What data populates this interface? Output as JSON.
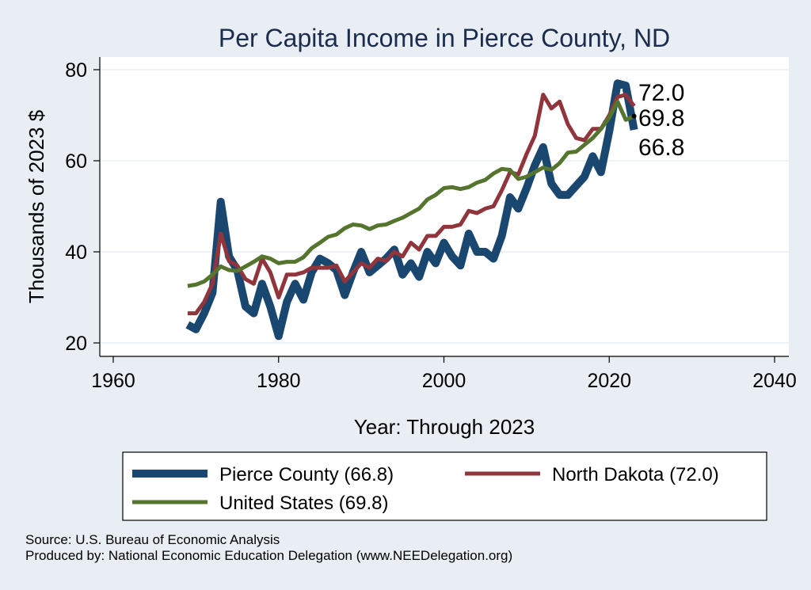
{
  "chart_data": {
    "type": "line",
    "title": "Per Capita Income in Pierce County, ND",
    "xlabel": "Year: Through 2023",
    "ylabel": "Thousands of 2023 $",
    "xlim": [
      1960,
      2040
    ],
    "ylim": [
      20,
      80
    ],
    "x_ticks": [
      1960,
      1980,
      2000,
      2020,
      2040
    ],
    "y_ticks": [
      20,
      40,
      60,
      80
    ],
    "grid": "horizontal",
    "legend_position": "bottom",
    "x": [
      1969,
      1970,
      1971,
      1972,
      1973,
      1974,
      1975,
      1976,
      1977,
      1978,
      1979,
      1980,
      1981,
      1982,
      1983,
      1984,
      1985,
      1986,
      1987,
      1988,
      1989,
      1990,
      1991,
      1992,
      1993,
      1994,
      1995,
      1996,
      1997,
      1998,
      1999,
      2000,
      2001,
      2002,
      2003,
      2004,
      2005,
      2006,
      2007,
      2008,
      2009,
      2010,
      2011,
      2012,
      2013,
      2014,
      2015,
      2016,
      2017,
      2018,
      2019,
      2020,
      2021,
      2022,
      2023
    ],
    "series": [
      {
        "name": "Pierce County (66.8)",
        "color": "#1a476f",
        "values": [
          24,
          23,
          26.5,
          31,
          51,
          39,
          36,
          28,
          26.5,
          33,
          28,
          21.5,
          29,
          33,
          29.5,
          35.5,
          38.5,
          37.5,
          36,
          30.5,
          35.5,
          40,
          35.5,
          37,
          38.5,
          40.5,
          35,
          37.5,
          34.5,
          40,
          37.5,
          42,
          39,
          37,
          44,
          40,
          40,
          38.5,
          43.5,
          52,
          49.5,
          54,
          59,
          63,
          55,
          52.5,
          52.5,
          54.5,
          56.5,
          61,
          57.5,
          66.5,
          77,
          76.5,
          66.8
        ]
      },
      {
        "name": "North Dakota (72.0)",
        "color": "#90353b",
        "values": [
          26.5,
          26.5,
          29,
          33,
          44,
          38,
          37,
          34,
          33,
          38.5,
          35.5,
          30,
          35,
          35,
          35.5,
          36.5,
          36.5,
          36.5,
          37,
          33.5,
          35.5,
          37.5,
          36.5,
          38.5,
          38,
          40,
          39,
          42,
          40.5,
          43.5,
          43.5,
          45.5,
          45.5,
          46,
          49,
          48.5,
          49.5,
          50,
          53.5,
          57.5,
          57,
          61.5,
          65.5,
          74.5,
          71.5,
          73,
          68,
          65,
          64.5,
          67,
          67,
          70,
          74,
          74.5,
          72.0
        ]
      },
      {
        "name": "United States (69.8)",
        "color": "#55752f",
        "values": [
          32.5,
          32.8,
          33.5,
          35,
          36.8,
          36,
          35.8,
          36.8,
          37.8,
          39,
          38.5,
          37.5,
          37.8,
          37.8,
          38.8,
          40.8,
          42,
          43.3,
          43.8,
          45.2,
          46,
          45.8,
          45,
          45.8,
          46,
          46.8,
          47.5,
          48.5,
          49.5,
          51.5,
          52.5,
          54,
          54.2,
          53.8,
          54.2,
          55.2,
          55.8,
          57.2,
          58.2,
          58,
          56,
          56.5,
          57.5,
          58.5,
          58,
          59.5,
          61.8,
          62,
          63.5,
          65,
          67,
          69.5,
          73,
          69,
          69.8
        ]
      }
    ],
    "end_labels": [
      "72.0",
      "69.8",
      "66.8"
    ],
    "notes": [
      "Source: U.S. Bureau of Economic Analysis",
      "Produced by: National Economic Education Delegation (www.NEEDelegation.org)"
    ]
  }
}
